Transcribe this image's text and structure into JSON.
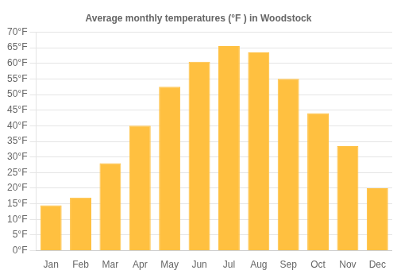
{
  "chart_data": {
    "type": "bar",
    "title": "Average monthly temperatures (°F ) in Woodstock",
    "categories": [
      "Jan",
      "Feb",
      "Mar",
      "Apr",
      "May",
      "Jun",
      "Jul",
      "Aug",
      "Sep",
      "Oct",
      "Nov",
      "Dec"
    ],
    "values": [
      14.5,
      17.0,
      28.0,
      40.0,
      52.5,
      60.5,
      65.5,
      63.5,
      55.0,
      44.0,
      33.5,
      20.0
    ],
    "color": "#FFC040",
    "ylim": [
      0,
      70
    ],
    "yticks": [
      {
        "value": 0,
        "label": "0°F"
      },
      {
        "value": 5,
        "label": "5°F"
      },
      {
        "value": 10,
        "label": "10°F"
      },
      {
        "value": 15,
        "label": "15°F"
      },
      {
        "value": 20,
        "label": "20°F"
      },
      {
        "value": 25,
        "label": "25°F"
      },
      {
        "value": 30,
        "label": "30°F"
      },
      {
        "value": 35,
        "label": "35°F"
      },
      {
        "value": 40,
        "label": "40°F"
      },
      {
        "value": 45,
        "label": "45°F"
      },
      {
        "value": 50,
        "label": "50°F"
      },
      {
        "value": 55,
        "label": "55°F"
      },
      {
        "value": 60,
        "label": "60°F"
      },
      {
        "value": 65,
        "label": "65°F"
      },
      {
        "value": 70,
        "label": "70°F"
      }
    ],
    "grid": true
  }
}
